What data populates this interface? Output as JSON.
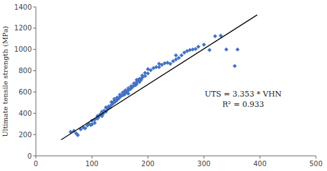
{
  "chart_data": {
    "type": "scatter",
    "ylabel": "Ultimate tensile strength (MPa)",
    "xlim": [
      0,
      500
    ],
    "ylim": [
      0,
      1400
    ],
    "xticks": [
      0,
      100,
      200,
      300,
      400,
      500
    ],
    "yticks": [
      0,
      200,
      400,
      600,
      800,
      1000,
      1200,
      1400
    ],
    "grid": false,
    "annotations": [
      "UTS = 3.353 * VHN",
      "R² = 0.933"
    ],
    "series": [
      {
        "type": "scatter",
        "color": "#4472C4",
        "marker": "diamond",
        "x": [
          62,
          68,
          72,
          75,
          80,
          85,
          88,
          92,
          95,
          98,
          100,
          100,
          105,
          105,
          110,
          110,
          112,
          115,
          118,
          118,
          120,
          122,
          125,
          125,
          128,
          130,
          132,
          135,
          135,
          138,
          140,
          140,
          142,
          145,
          145,
          148,
          150,
          150,
          152,
          155,
          155,
          158,
          158,
          160,
          160,
          162,
          165,
          165,
          165,
          168,
          170,
          170,
          172,
          175,
          175,
          178,
          180,
          180,
          180,
          182,
          185,
          185,
          188,
          190,
          190,
          195,
          195,
          200,
          200,
          205,
          210,
          215,
          220,
          220,
          225,
          230,
          235,
          240,
          245,
          250,
          250,
          255,
          260,
          265,
          270,
          275,
          280,
          285,
          290,
          300,
          310,
          320,
          330,
          355,
          340,
          360
        ],
        "values": [
          225,
          235,
          210,
          195,
          250,
          265,
          260,
          285,
          300,
          290,
          295,
          330,
          340,
          310,
          350,
          375,
          365,
          390,
          375,
          415,
          395,
          425,
          415,
          455,
          440,
          465,
          455,
          480,
          505,
          495,
          515,
          535,
          510,
          525,
          548,
          540,
          555,
          575,
          560,
          570,
          595,
          575,
          605,
          590,
          615,
          600,
          615,
          635,
          585,
          625,
          635,
          655,
          645,
          660,
          680,
          665,
          675,
          695,
          715,
          710,
          695,
          725,
          715,
          735,
          755,
          750,
          780,
          775,
          815,
          805,
          825,
          835,
          835,
          865,
          855,
          870,
          875,
          865,
          890,
          905,
          945,
          920,
          945,
          970,
          985,
          995,
          1000,
          1005,
          1025,
          1045,
          995,
          1125,
          1130,
          845,
          1000,
          1000
        ]
      },
      {
        "type": "line",
        "color": "#000000",
        "line_style": "solid",
        "x": [
          45,
          395
        ],
        "values": [
          150.885,
          1324.435
        ]
      }
    ]
  }
}
